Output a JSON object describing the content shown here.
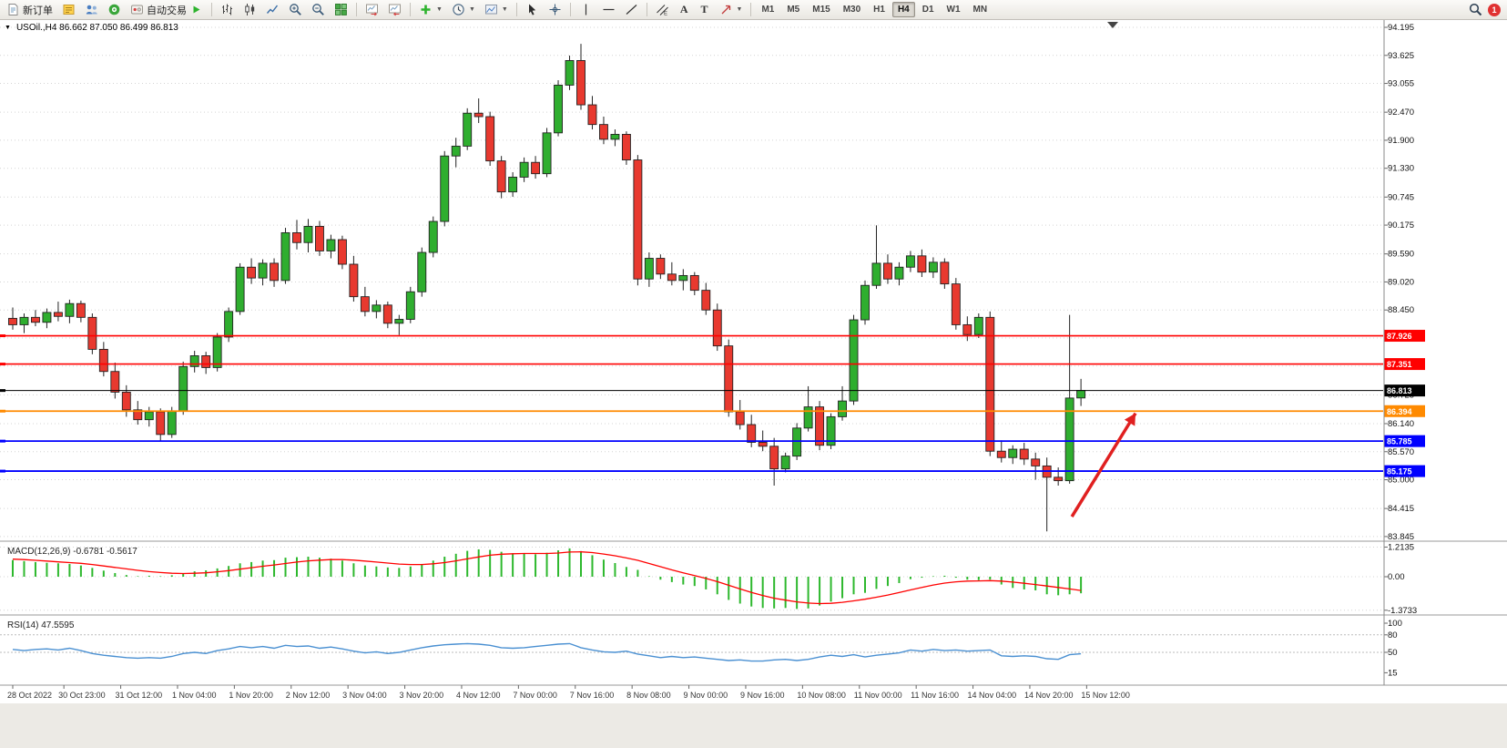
{
  "colors": {
    "up": "#2fae2f",
    "down": "#e8392f",
    "outline": "#222222",
    "grid": "#d4d4d4",
    "macd_bar": "#2db82d",
    "macd_signal": "#ff0000",
    "rsi_line": "#4a90d2",
    "arrow": "#e02020"
  },
  "toolbar": {
    "new_order_label": "新订单",
    "auto_trading_label": "自动交易",
    "text_tool": "A",
    "label_tool": "T",
    "notification_count": "1",
    "timeframes": [
      "M1",
      "M5",
      "M15",
      "M30",
      "H1",
      "H4",
      "D1",
      "W1",
      "MN"
    ],
    "selected_timeframe": "H4"
  },
  "chart": {
    "title": "USOil.,H4 86.662 87.050 86.499 86.813",
    "symbol": "USOil",
    "period": "H4",
    "open": "86.662",
    "high": "87.050",
    "low": "86.499",
    "close": "86.813"
  },
  "price_axis": {
    "ticks": [
      "94.195",
      "93.625",
      "93.055",
      "92.470",
      "91.900",
      "91.330",
      "90.745",
      "90.175",
      "89.590",
      "89.020",
      "88.450",
      "87.880",
      "87.310",
      "86.725",
      "86.140",
      "85.570",
      "85.000",
      "84.415",
      "83.845"
    ]
  },
  "time_axis": {
    "labels": [
      {
        "text": "28 Oct 2022",
        "pos": 0
      },
      {
        "text": "30 Oct 23:00",
        "pos": 4.5
      },
      {
        "text": "31 Oct 12:00",
        "pos": 9.5
      },
      {
        "text": "1 Nov 04:00",
        "pos": 14.5
      },
      {
        "text": "1 Nov 20:00",
        "pos": 19.5
      },
      {
        "text": "2 Nov 12:00",
        "pos": 24.5
      },
      {
        "text": "3 Nov 04:00",
        "pos": 29.5
      },
      {
        "text": "3 Nov 20:00",
        "pos": 34.5
      },
      {
        "text": "4 Nov 12:00",
        "pos": 39.5
      },
      {
        "text": "7 Nov 00:00",
        "pos": 44.5
      },
      {
        "text": "7 Nov 16:00",
        "pos": 49.5
      },
      {
        "text": "8 Nov 08:00",
        "pos": 54.5
      },
      {
        "text": "9 Nov 00:00",
        "pos": 59.5
      },
      {
        "text": "9 Nov 16:00",
        "pos": 64.5
      },
      {
        "text": "10 Nov 08:00",
        "pos": 69.5
      },
      {
        "text": "11 Nov 00:00",
        "pos": 74.5
      },
      {
        "text": "11 Nov 16:00",
        "pos": 79.5
      },
      {
        "text": "14 Nov 04:00",
        "pos": 84.5
      },
      {
        "text": "14 Nov 20:00",
        "pos": 89.5
      },
      {
        "text": "15 Nov 12:00",
        "pos": 94.5
      }
    ]
  },
  "chart_data": {
    "type": "candlestick",
    "symbol": "USOil",
    "period": "H4",
    "ylim": [
      83.78,
      94.25
    ],
    "ohlc": [
      [
        88.28,
        88.5,
        88.05,
        88.15
      ],
      [
        88.15,
        88.38,
        87.98,
        88.3
      ],
      [
        88.3,
        88.45,
        88.12,
        88.2
      ],
      [
        88.2,
        88.48,
        88.08,
        88.4
      ],
      [
        88.4,
        88.62,
        88.22,
        88.32
      ],
      [
        88.32,
        88.66,
        88.18,
        88.58
      ],
      [
        88.58,
        88.64,
        88.2,
        88.3
      ],
      [
        88.3,
        88.38,
        87.55,
        87.65
      ],
      [
        87.65,
        87.8,
        87.1,
        87.2
      ],
      [
        87.2,
        87.38,
        86.65,
        86.78
      ],
      [
        86.78,
        86.92,
        86.28,
        86.42
      ],
      [
        86.42,
        86.6,
        86.12,
        86.22
      ],
      [
        86.22,
        86.48,
        86.08,
        86.38
      ],
      [
        86.38,
        86.45,
        85.78,
        85.92
      ],
      [
        85.92,
        86.48,
        85.85,
        86.4
      ],
      [
        86.4,
        87.4,
        86.32,
        87.3
      ],
      [
        87.3,
        87.62,
        87.18,
        87.52
      ],
      [
        87.52,
        87.6,
        87.15,
        87.28
      ],
      [
        87.28,
        87.98,
        87.2,
        87.9
      ],
      [
        87.9,
        88.5,
        87.8,
        88.42
      ],
      [
        88.42,
        89.4,
        88.35,
        89.32
      ],
      [
        89.32,
        89.5,
        88.98,
        89.1
      ],
      [
        89.1,
        89.48,
        88.95,
        89.4
      ],
      [
        89.4,
        89.5,
        88.92,
        89.05
      ],
      [
        89.05,
        90.12,
        88.98,
        90.02
      ],
      [
        90.02,
        90.28,
        89.68,
        89.82
      ],
      [
        89.82,
        90.3,
        89.62,
        90.15
      ],
      [
        90.15,
        90.26,
        89.55,
        89.65
      ],
      [
        89.65,
        89.98,
        89.5,
        89.88
      ],
      [
        89.88,
        89.96,
        89.28,
        89.38
      ],
      [
        89.38,
        89.55,
        88.62,
        88.72
      ],
      [
        88.72,
        88.92,
        88.32,
        88.42
      ],
      [
        88.42,
        88.65,
        88.28,
        88.55
      ],
      [
        88.55,
        88.62,
        88.08,
        88.18
      ],
      [
        88.18,
        88.35,
        87.94,
        88.26
      ],
      [
        88.26,
        88.92,
        88.18,
        88.82
      ],
      [
        88.82,
        89.72,
        88.72,
        89.62
      ],
      [
        89.62,
        90.35,
        89.52,
        90.25
      ],
      [
        90.25,
        91.68,
        90.15,
        91.58
      ],
      [
        91.58,
        91.95,
        91.35,
        91.78
      ],
      [
        91.78,
        92.55,
        91.7,
        92.45
      ],
      [
        92.45,
        92.75,
        92.25,
        92.38
      ],
      [
        92.38,
        92.48,
        91.38,
        91.48
      ],
      [
        91.48,
        91.58,
        90.72,
        90.85
      ],
      [
        90.85,
        91.25,
        90.75,
        91.15
      ],
      [
        91.15,
        91.55,
        91.05,
        91.45
      ],
      [
        91.45,
        91.58,
        91.12,
        91.22
      ],
      [
        91.22,
        92.15,
        91.15,
        92.05
      ],
      [
        92.05,
        93.12,
        91.98,
        93.02
      ],
      [
        93.02,
        93.62,
        92.92,
        93.52
      ],
      [
        93.52,
        93.86,
        92.52,
        92.62
      ],
      [
        92.62,
        92.8,
        92.12,
        92.22
      ],
      [
        92.22,
        92.38,
        91.82,
        91.92
      ],
      [
        91.92,
        92.12,
        91.78,
        92.02
      ],
      [
        92.02,
        92.08,
        91.4,
        91.5
      ],
      [
        91.5,
        91.6,
        88.95,
        89.08
      ],
      [
        89.08,
        89.62,
        88.92,
        89.5
      ],
      [
        89.5,
        89.58,
        89.08,
        89.18
      ],
      [
        89.18,
        89.42,
        88.95,
        89.05
      ],
      [
        89.05,
        89.28,
        88.85,
        89.15
      ],
      [
        89.15,
        89.22,
        88.75,
        88.85
      ],
      [
        88.85,
        89.0,
        88.35,
        88.45
      ],
      [
        88.45,
        88.58,
        87.62,
        87.72
      ],
      [
        87.72,
        87.85,
        86.28,
        86.38
      ],
      [
        86.38,
        86.62,
        86.02,
        86.12
      ],
      [
        86.12,
        86.32,
        85.66,
        85.76
      ],
      [
        85.76,
        86.0,
        85.58,
        85.68
      ],
      [
        85.68,
        85.85,
        84.88,
        85.22
      ],
      [
        85.22,
        85.55,
        85.15,
        85.48
      ],
      [
        85.48,
        86.15,
        85.4,
        86.05
      ],
      [
        86.05,
        86.9,
        85.98,
        86.48
      ],
      [
        86.48,
        86.6,
        85.6,
        85.7
      ],
      [
        85.7,
        86.35,
        85.62,
        86.28
      ],
      [
        86.28,
        86.9,
        86.2,
        86.6
      ],
      [
        86.6,
        88.35,
        86.52,
        88.25
      ],
      [
        88.25,
        89.05,
        88.15,
        88.95
      ],
      [
        88.95,
        90.17,
        88.88,
        89.4
      ],
      [
        89.4,
        89.58,
        88.98,
        89.08
      ],
      [
        89.08,
        89.42,
        88.95,
        89.32
      ],
      [
        89.32,
        89.65,
        89.22,
        89.55
      ],
      [
        89.55,
        89.68,
        89.12,
        89.22
      ],
      [
        89.22,
        89.52,
        89.1,
        89.42
      ],
      [
        89.42,
        89.5,
        88.88,
        88.98
      ],
      [
        88.98,
        89.1,
        88.05,
        88.15
      ],
      [
        88.15,
        88.32,
        87.82,
        87.95
      ],
      [
        87.95,
        88.38,
        87.88,
        88.3
      ],
      [
        88.3,
        88.42,
        85.48,
        85.58
      ],
      [
        85.58,
        85.8,
        85.35,
        85.45
      ],
      [
        85.45,
        85.7,
        85.32,
        85.62
      ],
      [
        85.62,
        85.75,
        85.3,
        85.42
      ],
      [
        85.42,
        85.55,
        85.0,
        85.28
      ],
      [
        85.28,
        85.45,
        83.95,
        85.05
      ],
      [
        85.05,
        85.25,
        84.88,
        84.98
      ],
      [
        84.98,
        88.35,
        84.92,
        86.66
      ],
      [
        86.662,
        87.05,
        86.499,
        86.813
      ]
    ],
    "levels": [
      {
        "price": 87.926,
        "label": "87.926",
        "color": "#ff0000",
        "width": 1.6
      },
      {
        "price": 87.351,
        "label": "87.351",
        "color": "#ff0000",
        "width": 1.6
      },
      {
        "price": 86.813,
        "label": "86.813",
        "color": "#000000",
        "width": 1
      },
      {
        "price": 86.394,
        "label": "86.394",
        "color": "#ff8a00",
        "width": 1.8
      },
      {
        "price": 85.785,
        "label": "85.785",
        "color": "#0000ff",
        "width": 1.8
      },
      {
        "price": 85.175,
        "label": "85.175",
        "color": "#0000ff",
        "width": 1.8
      }
    ],
    "macd": {
      "display": "MACD(12,26,9) -0.6781 -0.5617",
      "axis": [
        {
          "label": "1.2135",
          "value": 1.2135
        },
        {
          "label": "0.00",
          "value": 0
        },
        {
          "label": "-1.3733",
          "value": -1.3733
        }
      ],
      "hist": [
        0.68,
        0.64,
        0.6,
        0.57,
        0.55,
        0.52,
        0.46,
        0.36,
        0.25,
        0.15,
        0.07,
        0.02,
        0.04,
        0.02,
        0.06,
        0.14,
        0.22,
        0.26,
        0.34,
        0.44,
        0.55,
        0.6,
        0.66,
        0.68,
        0.78,
        0.8,
        0.82,
        0.78,
        0.74,
        0.66,
        0.55,
        0.46,
        0.42,
        0.38,
        0.36,
        0.42,
        0.52,
        0.66,
        0.82,
        0.94,
        1.06,
        1.12,
        1.1,
        1.02,
        0.96,
        0.94,
        0.92,
        0.98,
        1.08,
        1.16,
        1.05,
        0.88,
        0.7,
        0.56,
        0.4,
        0.28,
        0.02,
        -0.12,
        -0.22,
        -0.32,
        -0.38,
        -0.52,
        -0.72,
        -0.95,
        -1.1,
        -1.22,
        -1.28,
        -1.3,
        -1.28,
        -1.32,
        -1.3,
        -1.18,
        -1.02,
        -0.88,
        -0.72,
        -0.66,
        -0.5,
        -0.38,
        -0.26,
        -0.1,
        -0.04,
        0.02,
        0.04,
        -0.04,
        -0.12,
        -0.14,
        -0.12,
        -0.32,
        -0.46,
        -0.52,
        -0.56,
        -0.72,
        -0.76,
        -0.72,
        -0.6781
      ],
      "signal": [
        0.72,
        0.7,
        0.67,
        0.64,
        0.61,
        0.58,
        0.55,
        0.5,
        0.44,
        0.38,
        0.32,
        0.26,
        0.21,
        0.17,
        0.14,
        0.13,
        0.14,
        0.16,
        0.2,
        0.25,
        0.31,
        0.37,
        0.43,
        0.48,
        0.54,
        0.6,
        0.65,
        0.68,
        0.7,
        0.7,
        0.68,
        0.64,
        0.6,
        0.56,
        0.52,
        0.5,
        0.5,
        0.53,
        0.58,
        0.65,
        0.73,
        0.81,
        0.88,
        0.92,
        0.94,
        0.95,
        0.95,
        0.95,
        0.97,
        1.01,
        1.02,
        0.99,
        0.93,
        0.86,
        0.77,
        0.67,
        0.54,
        0.41,
        0.28,
        0.16,
        0.05,
        -0.07,
        -0.2,
        -0.35,
        -0.5,
        -0.64,
        -0.77,
        -0.88,
        -0.96,
        -1.03,
        -1.08,
        -1.1,
        -1.09,
        -1.05,
        -0.99,
        -0.92,
        -0.84,
        -0.75,
        -0.65,
        -0.54,
        -0.44,
        -0.34,
        -0.26,
        -0.21,
        -0.18,
        -0.17,
        -0.16,
        -0.18,
        -0.22,
        -0.27,
        -0.32,
        -0.38,
        -0.44,
        -0.5,
        -0.5617
      ]
    },
    "rsi": {
      "display": "RSI(14) 47.5595",
      "axis": [
        {
          "label": "100",
          "value": 100,
          "line": false
        },
        {
          "label": "80",
          "value": 80,
          "line": true
        },
        {
          "label": "50",
          "value": 50,
          "line": true
        },
        {
          "label": "15",
          "value": 15,
          "line": false
        }
      ],
      "series": [
        55,
        53,
        55,
        56,
        54,
        57,
        53,
        48,
        45,
        43,
        41,
        40,
        41,
        40,
        43,
        48,
        50,
        48,
        53,
        56,
        60,
        58,
        60,
        57,
        62,
        60,
        61,
        57,
        59,
        56,
        52,
        49,
        51,
        48,
        50,
        54,
        58,
        61,
        63,
        64,
        65,
        64,
        62,
        58,
        57,
        58,
        60,
        62,
        64,
        65,
        58,
        54,
        51,
        50,
        52,
        47,
        44,
        41,
        43,
        41,
        42,
        40,
        38,
        36,
        37,
        35,
        35,
        37,
        38,
        36,
        38,
        42,
        45,
        43,
        46,
        42,
        45,
        47,
        49,
        54,
        52,
        55,
        53,
        54,
        52,
        53,
        54,
        44,
        43,
        44,
        43,
        39,
        38,
        46,
        47.56
      ]
    },
    "arrow": {
      "from_bar": 93.2,
      "from_price": 84.25,
      "to_bar": 98.8,
      "to_price": 86.35
    }
  }
}
